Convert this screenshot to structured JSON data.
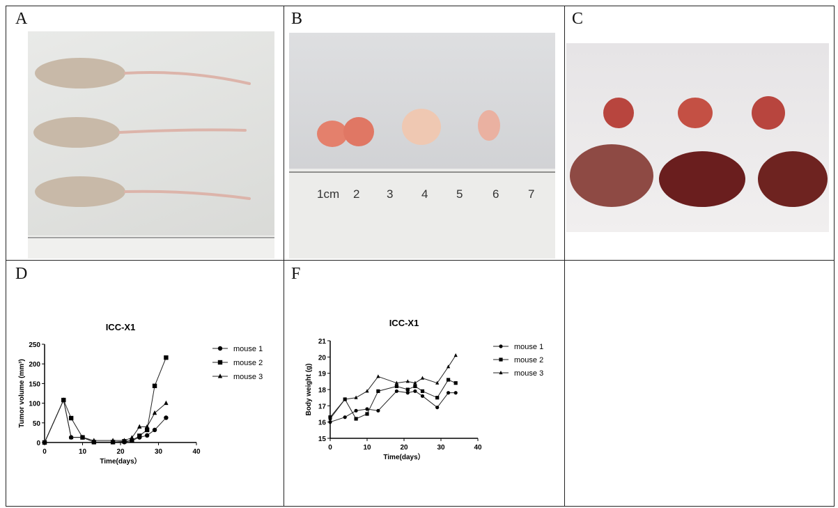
{
  "panels": {
    "a": "A",
    "b": "B",
    "c": "C",
    "d": "D",
    "f": "F"
  },
  "ruler_b_labels": [
    "1cm",
    "2",
    "3",
    "4",
    "5",
    "6",
    "7"
  ],
  "chart_data": [
    {
      "type": "line",
      "title": "ICC-X1",
      "xlabel": "Time(days）",
      "ylabel": "Tumor volume (mm³)",
      "xlim": [
        0,
        40
      ],
      "ylim": [
        0,
        250
      ],
      "xticks": [
        0,
        10,
        20,
        30,
        40
      ],
      "yticks": [
        0,
        50,
        100,
        150,
        200,
        250
      ],
      "legend_position": "right",
      "x": [
        0,
        5,
        7,
        10,
        13,
        18,
        21,
        23,
        25,
        27,
        29,
        32
      ],
      "series": [
        {
          "name": "mouse 1",
          "marker": "circle",
          "values": [
            0,
            108,
            13,
            13,
            1,
            1,
            1,
            5,
            13,
            18,
            32,
            63
          ]
        },
        {
          "name": "mouse 2",
          "marker": "square",
          "values": [
            0,
            108,
            62,
            13,
            1,
            1,
            3,
            5,
            17,
            32,
            144,
            216
          ]
        },
        {
          "name": "mouse 3",
          "marker": "triangle",
          "values": [
            0,
            108,
            13,
            13,
            5,
            5,
            5,
            12,
            40,
            40,
            75,
            100
          ]
        }
      ]
    },
    {
      "type": "line",
      "title": "ICC-X1",
      "xlabel": "Time(days）",
      "ylabel": "Body weight (g)",
      "xlim": [
        0,
        40
      ],
      "ylim": [
        15,
        21
      ],
      "xticks": [
        0,
        10,
        20,
        30,
        40
      ],
      "yticks": [
        15,
        16,
        17,
        18,
        19,
        20,
        21
      ],
      "legend_position": "right",
      "x": [
        0,
        4,
        7,
        10,
        13,
        18,
        21,
        23,
        25,
        29,
        32,
        34
      ],
      "series": [
        {
          "name": "mouse 1",
          "marker": "circle",
          "values": [
            16.0,
            16.3,
            16.7,
            16.8,
            16.7,
            17.9,
            17.8,
            17.9,
            17.6,
            16.9,
            17.8,
            17.8
          ]
        },
        {
          "name": "mouse 2",
          "marker": "square",
          "values": [
            16.3,
            17.4,
            16.2,
            16.5,
            17.9,
            18.2,
            18.0,
            18.2,
            17.9,
            17.5,
            18.6,
            18.4
          ]
        },
        {
          "name": "mouse 3",
          "marker": "triangle",
          "values": [
            16.2,
            17.4,
            17.5,
            17.9,
            18.8,
            18.4,
            18.5,
            18.4,
            18.7,
            18.4,
            19.4,
            20.1
          ]
        }
      ]
    }
  ]
}
